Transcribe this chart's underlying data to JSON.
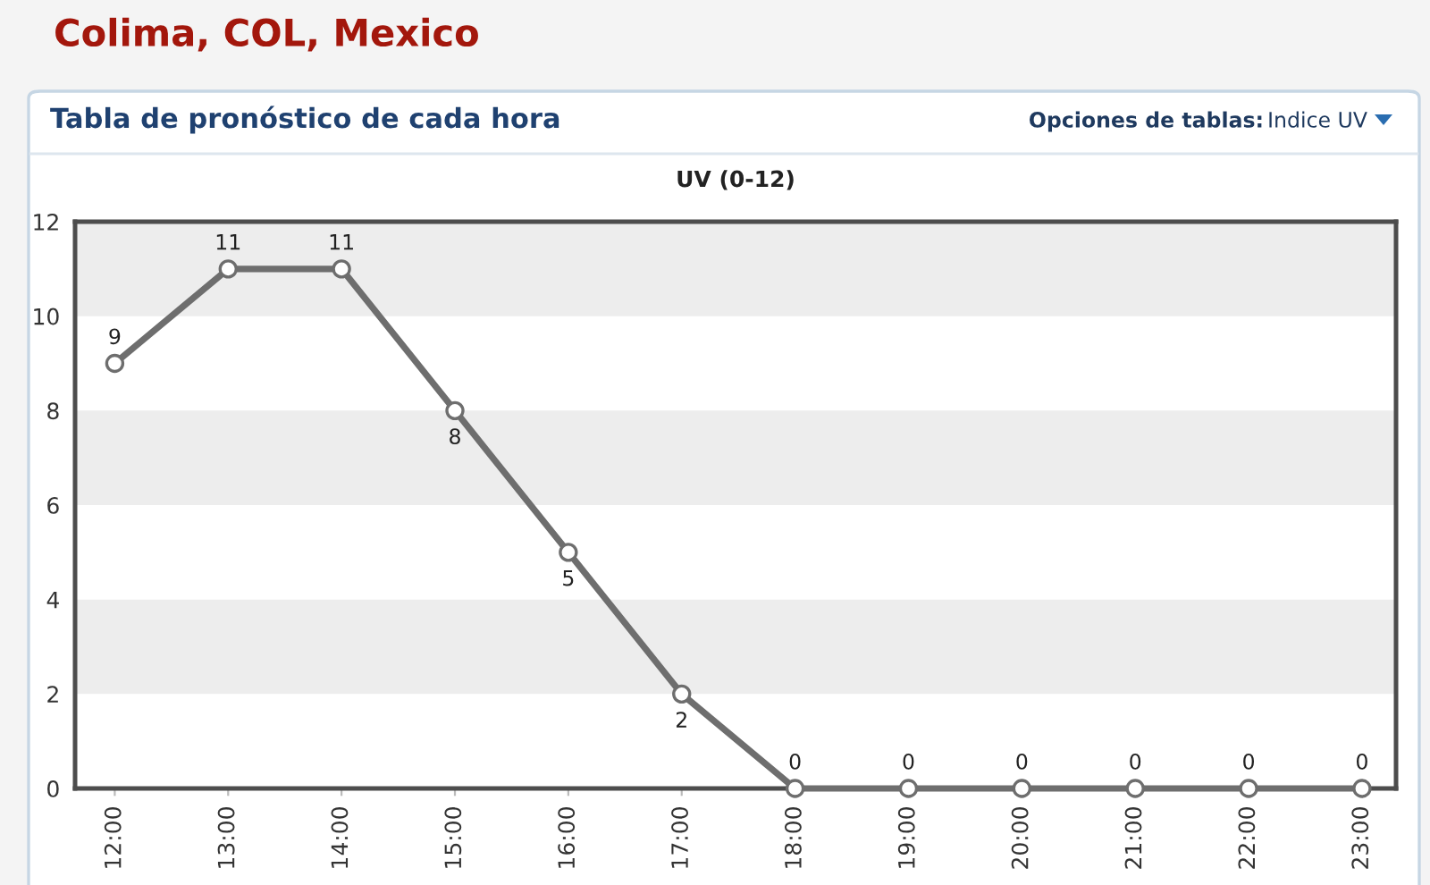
{
  "chart_data": {
    "type": "line",
    "title": "UV (0-12)",
    "annotations": [
      "Colima, COL, Mexico",
      "Tabla de pronóstico de cada hora",
      "Opciones de tablas:",
      "Indice UV"
    ],
    "categories": [
      "12:00",
      "13:00",
      "14:00",
      "15:00",
      "16:00",
      "17:00",
      "18:00",
      "19:00",
      "20:00",
      "21:00",
      "22:00",
      "23:00"
    ],
    "series": [
      {
        "color": "#6e6e6e",
        "values": [
          9,
          11,
          11,
          8,
          5,
          2,
          0,
          0,
          0,
          0,
          0,
          0
        ]
      }
    ],
    "ylim": [
      0,
      12
    ],
    "yticks": [
      0,
      2,
      4,
      6,
      8,
      10,
      12
    ],
    "bands": [
      {
        "axis": "y",
        "from": 10,
        "to": 12,
        "color": "#ededed"
      },
      {
        "axis": "y",
        "from": 6,
        "to": 8,
        "color": "#ededed"
      },
      {
        "axis": "y",
        "from": 2,
        "to": 4,
        "color": "#ededed"
      }
    ],
    "data_labels": true,
    "marker": "circle",
    "line_style": "solid",
    "grid": false
  }
}
